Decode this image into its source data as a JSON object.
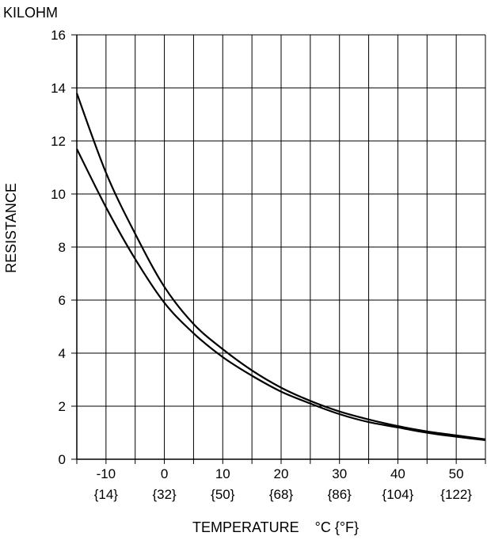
{
  "chart_data": {
    "type": "line",
    "title": "",
    "unit_label": "KILOHM",
    "ylabel": "RESISTANCE",
    "xlabel": "TEMPERATURE    °C {°F}",
    "xlim": [
      -15,
      55
    ],
    "ylim": [
      0,
      16
    ],
    "y_ticks": [
      0,
      2,
      4,
      6,
      8,
      10,
      12,
      14,
      16
    ],
    "x_ticks": [
      {
        "value": -10,
        "label": "-10",
        "alt_label": "{14}"
      },
      {
        "value": 0,
        "label": "0",
        "alt_label": "{32}"
      },
      {
        "value": 10,
        "label": "10",
        "alt_label": "{50}"
      },
      {
        "value": 20,
        "label": "20",
        "alt_label": "{68}"
      },
      {
        "value": 30,
        "label": "30",
        "alt_label": "{86}"
      },
      {
        "value": 40,
        "label": "40",
        "alt_label": "{104}"
      },
      {
        "value": 50,
        "label": "50",
        "alt_label": "{122}"
      }
    ],
    "grid": true,
    "series": [
      {
        "x": [
          -15,
          -10,
          -5,
          0,
          5,
          10,
          15,
          20,
          25,
          30,
          35,
          40,
          45,
          50,
          55
        ],
        "y": [
          13.8,
          10.8,
          8.5,
          6.5,
          5.1,
          4.15,
          3.35,
          2.7,
          2.2,
          1.8,
          1.5,
          1.25,
          1.05,
          0.9,
          0.75
        ]
      },
      {
        "x": [
          -15,
          -10,
          -5,
          0,
          5,
          10,
          15,
          20,
          25,
          30,
          35,
          40,
          45,
          50,
          55
        ],
        "y": [
          11.7,
          9.5,
          7.55,
          5.9,
          4.75,
          3.85,
          3.15,
          2.55,
          2.1,
          1.7,
          1.4,
          1.2,
          1.0,
          0.85,
          0.72
        ]
      }
    ]
  }
}
